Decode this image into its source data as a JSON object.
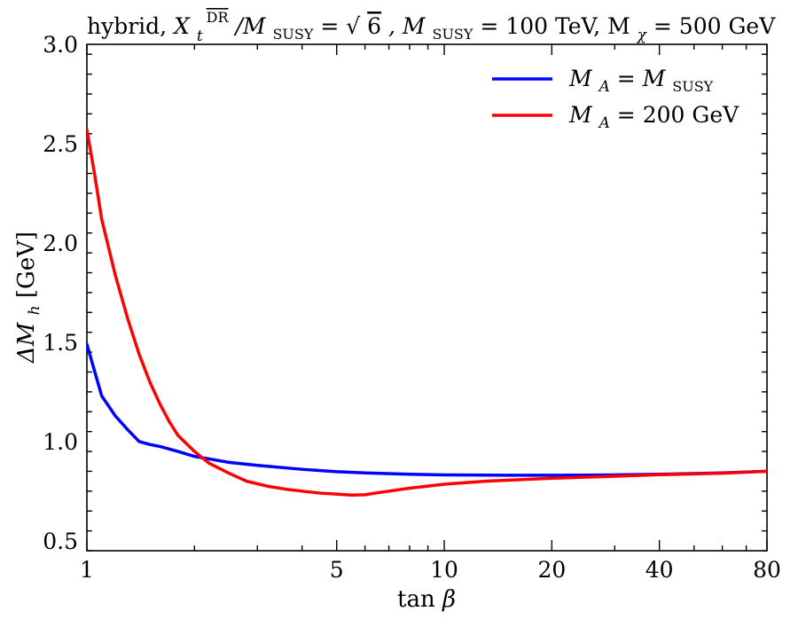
{
  "chart_data": {
    "type": "line",
    "title": "hybrid, X_t^DR / M_SUSY = √6, M_SUSY = 100 TeV, M_χ = 500 GeV",
    "title_parts": {
      "p1": "hybrid, ",
      "xt_main": "X",
      "xt_sub": "t",
      "xt_sup": "DR",
      "p2": "/M",
      "msusy_sub": "SUSY",
      "p3": " = ",
      "sqrt": "√",
      "six": "6",
      "p4": ", M",
      "msusy2_sub": "SUSY",
      "p5": " = 100 TeV, M",
      "mchi_sub": "χ",
      "p6": " = 500 GeV"
    },
    "xlabel": "tan β",
    "xlabel_parts": {
      "fn": "tan ",
      "var": "β"
    },
    "ylabel": "ΔM_h [GeV]",
    "ylabel_parts": {
      "delta": "ΔM",
      "sub": "h",
      "unit": " [GeV]"
    },
    "x_scale": "log",
    "xlim": [
      1,
      80
    ],
    "ylim": [
      0.45,
      3.0
    ],
    "x_ticks": [
      1,
      5,
      10,
      20,
      40,
      80
    ],
    "x_tick_labels": [
      "1",
      "5",
      "10",
      "20",
      "40",
      "80"
    ],
    "y_ticks": [
      0.5,
      1.0,
      1.5,
      2.0,
      2.5,
      3.0
    ],
    "y_tick_labels": [
      "0.5",
      "1.0",
      "1.5",
      "2.0",
      "2.5",
      "3.0"
    ],
    "y_minor_step": 0.1,
    "grid": false,
    "legend_position": "top-right",
    "series": [
      {
        "name": "M_A = M_SUSY",
        "legend_parts": {
          "m": "M",
          "sub": "A",
          "eq": " = M",
          "sub2": "SUSY"
        },
        "color": "#0000ff",
        "x": [
          1.0,
          1.1,
          1.2,
          1.3,
          1.4,
          1.5,
          1.6,
          1.8,
          2.0,
          2.5,
          3.0,
          4.0,
          5.0,
          6.0,
          8.0,
          10.0,
          15.0,
          20.0,
          30.0,
          40.0,
          60.0,
          80.0
        ],
        "y": [
          1.49,
          1.23,
          1.13,
          1.06,
          1.0,
          0.985,
          0.975,
          0.95,
          0.925,
          0.895,
          0.88,
          0.86,
          0.848,
          0.842,
          0.835,
          0.832,
          0.83,
          0.83,
          0.832,
          0.835,
          0.842,
          0.85
        ]
      },
      {
        "name": "M_A = 200 GeV",
        "legend_parts": {
          "m": "M",
          "sub": "A",
          "eq": " = 200 GeV"
        },
        "color": "#ff0000",
        "x": [
          1.0,
          1.05,
          1.1,
          1.2,
          1.3,
          1.4,
          1.5,
          1.6,
          1.7,
          1.8,
          2.0,
          2.2,
          2.5,
          2.8,
          3.2,
          3.6,
          4.0,
          4.5,
          5.0,
          5.5,
          6.0,
          6.4,
          7.0,
          8.0,
          10.0,
          13.0,
          20.0,
          30.0,
          40.0,
          60.0,
          80.0
        ],
        "y": [
          2.57,
          2.35,
          2.12,
          1.84,
          1.62,
          1.44,
          1.3,
          1.19,
          1.1,
          1.03,
          0.95,
          0.89,
          0.84,
          0.8,
          0.775,
          0.76,
          0.75,
          0.74,
          0.735,
          0.73,
          0.732,
          0.74,
          0.75,
          0.765,
          0.785,
          0.8,
          0.815,
          0.825,
          0.833,
          0.84,
          0.85
        ]
      }
    ]
  }
}
